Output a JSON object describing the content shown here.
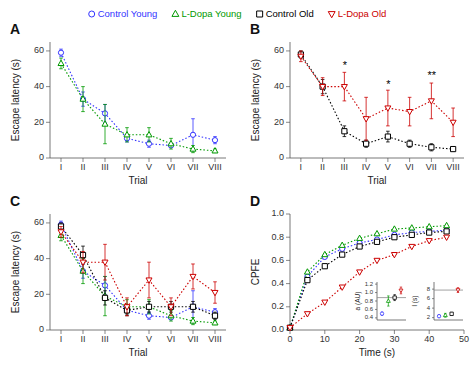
{
  "chart_data": [
    {
      "type": "line",
      "title": "A",
      "x_label": "Trial",
      "y_label": "Escape latency (s)",
      "categories": [
        "I",
        "II",
        "III",
        "IV",
        "V",
        "VI",
        "VII",
        "VIII"
      ],
      "ylim": [
        0,
        65
      ],
      "yticks": [
        0,
        20,
        40,
        60
      ],
      "series": [
        {
          "name": "Control Young",
          "color": "#3333ff",
          "marker": "circle",
          "line_style": "dotted",
          "values": [
            59,
            33,
            25,
            11,
            8,
            7,
            13,
            10
          ],
          "errors": [
            2,
            4,
            5,
            2,
            2,
            1,
            9,
            2
          ]
        },
        {
          "name": "L-Dopa Young",
          "color": "#009900",
          "marker": "triangle-up",
          "line_style": "dotted",
          "values": [
            53,
            33,
            19,
            13,
            13,
            8,
            5,
            4
          ],
          "errors": [
            3,
            7,
            11,
            4,
            4,
            3,
            2,
            1
          ]
        }
      ]
    },
    {
      "type": "line",
      "title": "B",
      "x_label": "Trial",
      "y_label": "Escape latency (s)",
      "categories": [
        "I",
        "II",
        "III",
        "IV",
        "V",
        "VI",
        "VII",
        "VIII"
      ],
      "ylim": [
        0,
        65
      ],
      "yticks": [
        0,
        20,
        40,
        60
      ],
      "series": [
        {
          "name": "Control Old",
          "color": "#000000",
          "marker": "square",
          "line_style": "dotted",
          "values": [
            58,
            40,
            15,
            8,
            12,
            8,
            6,
            5
          ],
          "errors": [
            2,
            4,
            3,
            2,
            3,
            2,
            2,
            1
          ]
        },
        {
          "name": "L-Dopa Old",
          "color": "#cc0000",
          "marker": "triangle-down",
          "line_style": "dotted",
          "values": [
            57,
            40,
            40,
            22,
            28,
            26,
            32,
            20
          ],
          "errors": [
            3,
            5,
            8,
            12,
            10,
            8,
            10,
            8
          ]
        }
      ],
      "annotations": [
        {
          "text": "*",
          "category": "III",
          "y": 50
        },
        {
          "text": "*",
          "category": "V",
          "y": 39
        },
        {
          "text": "**",
          "category": "VII",
          "y": 44
        }
      ]
    },
    {
      "type": "line",
      "title": "C",
      "x_label": "Trial",
      "y_label": "Escape latency (s)",
      "categories": [
        "I",
        "II",
        "III",
        "IV",
        "V",
        "VI",
        "VII",
        "VIII"
      ],
      "ylim": [
        0,
        65
      ],
      "yticks": [
        0,
        20,
        40,
        60
      ],
      "series": [
        {
          "name": "Control Young",
          "color": "#3333ff",
          "marker": "circle",
          "line_style": "dotted",
          "values": [
            59,
            33,
            25,
            11,
            8,
            7,
            13,
            10
          ],
          "errors": [
            2,
            4,
            5,
            2,
            2,
            1,
            9,
            2
          ]
        },
        {
          "name": "L-Dopa Young",
          "color": "#009900",
          "marker": "triangle-up",
          "line_style": "dotted",
          "values": [
            53,
            33,
            19,
            13,
            13,
            8,
            5,
            4
          ],
          "errors": [
            3,
            7,
            11,
            4,
            4,
            3,
            2,
            1
          ]
        },
        {
          "name": "Control Old",
          "color": "#000000",
          "marker": "square",
          "line_style": "dotted",
          "values": [
            58,
            42,
            18,
            11,
            13,
            13,
            13,
            8
          ],
          "errors": [
            2,
            5,
            4,
            3,
            3,
            3,
            3,
            2
          ]
        },
        {
          "name": "L-Dopa Old",
          "color": "#cc0000",
          "marker": "triangle-down",
          "line_style": "dotted",
          "values": [
            55,
            38,
            38,
            13,
            28,
            13,
            30,
            21
          ],
          "errors": [
            3,
            6,
            10,
            5,
            10,
            5,
            7,
            6
          ]
        }
      ]
    },
    {
      "type": "line",
      "title": "D",
      "x_label": "Time (s)",
      "y_label": "CPFE",
      "x": [
        0,
        5,
        10,
        15,
        20,
        25,
        30,
        35,
        40,
        45
      ],
      "xlim": [
        0,
        50
      ],
      "xticks": [
        0,
        10,
        20,
        30,
        40,
        50
      ],
      "ylim": [
        0.0,
        1.0
      ],
      "yticks": [
        {
          "value": 0.0,
          "label": "0.0"
        },
        0.2,
        0.4,
        0.6,
        0.8,
        {
          "value": 1.0,
          "label": "1.0"
        }
      ],
      "series": [
        {
          "name": "Control Young",
          "color": "#3333ff",
          "marker": "circle",
          "line_style": "dotted",
          "values": [
            0.02,
            0.46,
            0.63,
            0.7,
            0.75,
            0.78,
            0.82,
            0.84,
            0.85,
            0.86
          ]
        },
        {
          "name": "L-Dopa Young",
          "color": "#009900",
          "marker": "triangle-up",
          "line_style": "dotted",
          "values": [
            0.02,
            0.5,
            0.65,
            0.73,
            0.79,
            0.83,
            0.87,
            0.88,
            0.89,
            0.9
          ]
        },
        {
          "name": "Control Old",
          "color": "#000000",
          "marker": "square",
          "line_style": "dotted",
          "values": [
            0.02,
            0.43,
            0.55,
            0.65,
            0.72,
            0.76,
            0.8,
            0.82,
            0.84,
            0.85
          ]
        },
        {
          "name": "L-Dopa Old",
          "color": "#cc0000",
          "marker": "triangle-down",
          "line_style": "dotted",
          "values": [
            0.02,
            0.14,
            0.24,
            0.37,
            0.5,
            0.6,
            0.65,
            0.72,
            0.77,
            0.8
          ]
        }
      ]
    },
    {
      "type": "scatter",
      "y_label": "a (AU)",
      "x": [
        1,
        2,
        3,
        4
      ],
      "xlim": [
        0.2,
        4.8
      ],
      "values": [
        0.5,
        0.8,
        0.88,
        1.05
      ],
      "errors": [
        0.04,
        0.12,
        0.07,
        0.08
      ],
      "colors": [
        "#3333ff",
        "#009900",
        "#000000",
        "#cc0000"
      ],
      "hline": 0.88,
      "ylim": [
        0.35,
        1.25
      ],
      "yticks": [
        0.4,
        0.6,
        0.8,
        {
          "value": 1.0,
          "label": "1.0"
        },
        1.2
      ],
      "tick_labels": "y"
    },
    {
      "type": "scatter",
      "y_label": "l (s)",
      "x": [
        1,
        2,
        3,
        4
      ],
      "xlim": [
        0.2,
        4.8
      ],
      "values": [
        2.3,
        2.5,
        2.8,
        7.8
      ],
      "errors": [
        0.3,
        0.4,
        0.3,
        0.5
      ],
      "colors": [
        "#3333ff",
        "#009900",
        "#000000",
        "#cc0000"
      ],
      "hline": 7.8,
      "ylim": [
        1.5,
        9.5
      ],
      "yticks": [
        2,
        4,
        6,
        8
      ],
      "tick_labels": "y"
    }
  ]
}
